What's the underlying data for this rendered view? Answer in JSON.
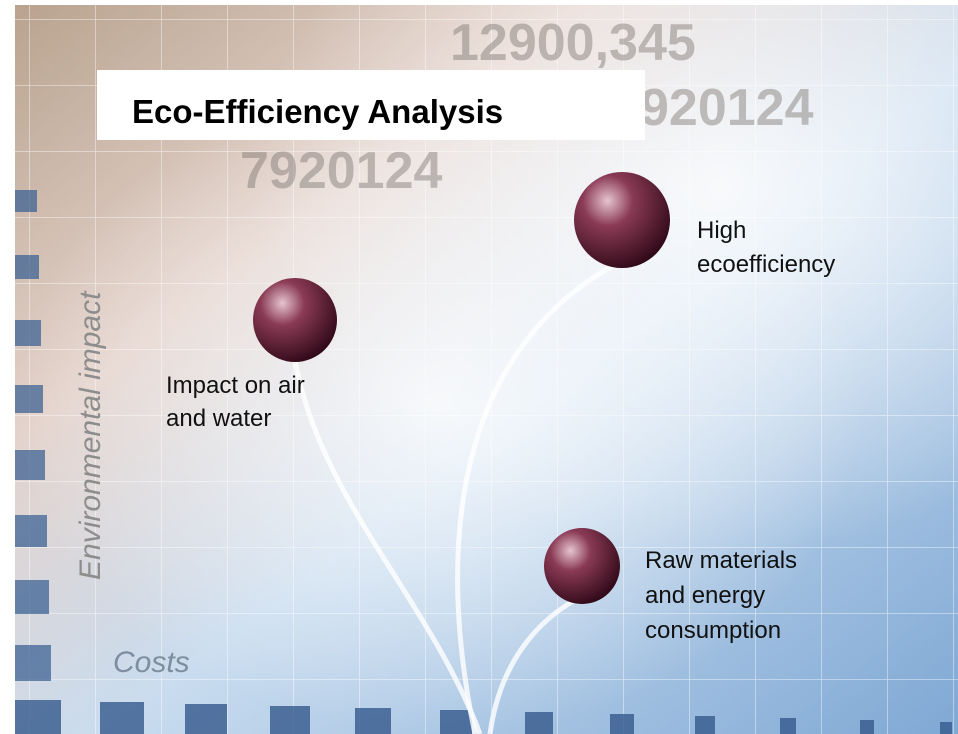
{
  "title": "Eco-Efficiency Analysis",
  "axis_labels": {
    "y": "Environmental impact",
    "x": "Costs"
  },
  "background_numbers": [
    "12900,345",
    "7920124",
    "920124"
  ],
  "nodes": [
    {
      "lines": [
        "Impact on air",
        "and water"
      ]
    },
    {
      "lines": [
        "High",
        "ecoefficiency"
      ]
    },
    {
      "lines": [
        "Raw materials",
        "and energy",
        "consumption"
      ]
    }
  ]
}
